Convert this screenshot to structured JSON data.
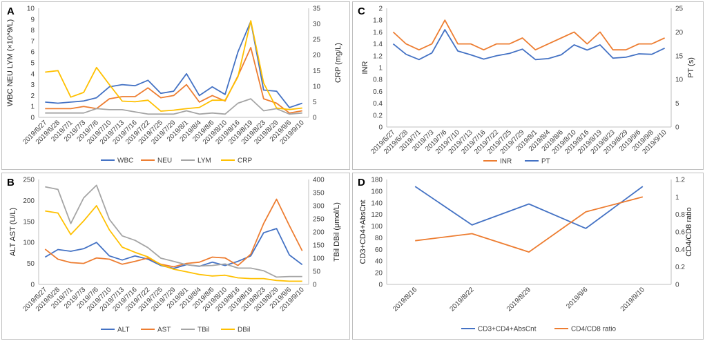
{
  "chart_data": [
    {
      "panel": "A",
      "type": "line",
      "categories": [
        "2019/6/27",
        "2019/6/28",
        "2019/7/1",
        "2019/7/3",
        "2019/7/6",
        "2019/7/10",
        "2019/7/13",
        "2019/7/16",
        "2019/7/22",
        "2019/7/25",
        "2019/7/29",
        "2019/8/1",
        "2019/8/4",
        "2019/8/6",
        "2019/8/10",
        "2019/8/16",
        "2019/8/19",
        "2019/8/23",
        "2019/8/29",
        "2019/9/6",
        "2019/9/10"
      ],
      "ylabel": "WBC NEU LYM (×10^9/L)",
      "y2label": "CRP (mg/L)",
      "ylim": [
        0,
        10
      ],
      "yticks": [
        "0",
        "1",
        "2",
        "3",
        "4",
        "5",
        "6",
        "7",
        "8",
        "9",
        "10"
      ],
      "y2lim": [
        0,
        35
      ],
      "y2ticks": [
        "0",
        "5",
        "10",
        "15",
        "20",
        "25",
        "30",
        "35"
      ],
      "series": [
        {
          "name": "WBC",
          "color": "#4472c4",
          "axis": "left",
          "values": [
            1.4,
            1.3,
            1.4,
            1.5,
            1.8,
            2.8,
            3.0,
            2.9,
            3.4,
            2.2,
            2.4,
            4.0,
            2.0,
            2.8,
            2.1,
            6.0,
            8.8,
            2.5,
            2.4,
            0.9,
            1.3
          ]
        },
        {
          "name": "NEU",
          "color": "#ed7d31",
          "axis": "left",
          "values": [
            0.8,
            0.8,
            0.8,
            1.0,
            0.8,
            1.7,
            1.9,
            1.9,
            2.7,
            1.8,
            2.0,
            3.0,
            1.4,
            2.0,
            1.5,
            3.8,
            6.4,
            1.7,
            1.3,
            0.4,
            0.6
          ]
        },
        {
          "name": "LYM",
          "color": "#a5a5a5",
          "axis": "left",
          "values": [
            0.4,
            0.4,
            0.4,
            0.4,
            0.8,
            0.7,
            0.7,
            0.5,
            0.3,
            0.3,
            0.3,
            0.6,
            0.3,
            0.4,
            0.3,
            1.3,
            1.7,
            0.6,
            0.8,
            0.3,
            0.4
          ]
        },
        {
          "name": "CRP",
          "color": "#ffc000",
          "axis": "right",
          "values": [
            14.5,
            15.0,
            6.5,
            8.0,
            16.0,
            10.5,
            5.2,
            5.0,
            5.5,
            2.0,
            2.3,
            2.8,
            3.2,
            5.5,
            5.5,
            13.0,
            31.0,
            11.0,
            3.0,
            2.5,
            3.0
          ]
        }
      ]
    },
    {
      "panel": "B",
      "type": "line",
      "categories": [
        "2019/6/27",
        "2019/6/28",
        "2019/7/1",
        "2019/7/3",
        "2019/7/6",
        "2019/7/10",
        "2019/7/13",
        "2019/7/16",
        "2019/7/22",
        "2019/7/25",
        "2019/7/29",
        "2019/8/1",
        "2019/8/4",
        "2019/8/6",
        "2019/8/10",
        "2019/8/16",
        "2019/8/19",
        "2019/8/23",
        "2019/8/29",
        "2019/9/6",
        "2019/9/10"
      ],
      "ylabel": "ALT AST (U/L)",
      "y2label": "TBil DBil (μmol/L)",
      "ylim": [
        0,
        250
      ],
      "yticks": [
        "0",
        "50",
        "100",
        "150",
        "200",
        "250"
      ],
      "y2lim": [
        0,
        400
      ],
      "y2ticks": [
        "0",
        "50",
        "100",
        "150",
        "200",
        "250",
        "300",
        "350",
        "400"
      ],
      "series": [
        {
          "name": "ALT",
          "color": "#4472c4",
          "axis": "left",
          "values": [
            65,
            83,
            79,
            85,
            100,
            68,
            58,
            68,
            60,
            45,
            38,
            47,
            43,
            53,
            45,
            55,
            68,
            123,
            133,
            70,
            47
          ]
        },
        {
          "name": "AST",
          "color": "#ed7d31",
          "axis": "left",
          "values": [
            84,
            60,
            52,
            50,
            63,
            60,
            48,
            55,
            63,
            48,
            42,
            50,
            53,
            65,
            63,
            45,
            72,
            145,
            203,
            140,
            80
          ]
        },
        {
          "name": "TBil",
          "color": "#a5a5a5",
          "axis": "right",
          "values": [
            372,
            362,
            232,
            330,
            378,
            248,
            185,
            168,
            140,
            100,
            88,
            75,
            70,
            72,
            78,
            62,
            62,
            52,
            28,
            30,
            30
          ]
        },
        {
          "name": "DBil",
          "color": "#ffc000",
          "axis": "right",
          "values": [
            280,
            272,
            190,
            242,
            300,
            208,
            142,
            122,
            105,
            75,
            58,
            48,
            38,
            32,
            35,
            25,
            22,
            22,
            15,
            12,
            12
          ]
        }
      ]
    },
    {
      "panel": "C",
      "type": "line",
      "categories": [
        "2019/6/27",
        "2019/6/28",
        "2019/7/1",
        "2019/7/3",
        "2019/7/6",
        "2019/7/10",
        "2019/7/13",
        "2019/7/16",
        "2019/7/22",
        "2019/7/25",
        "2019/7/29",
        "2019/8/1",
        "2019/8/4",
        "2019/8/6",
        "2019/8/10",
        "2019/8/16",
        "2019/8/19",
        "2019/8/23",
        "2019/8/29",
        "2019/9/6",
        "2019/9/8",
        "2019/9/10"
      ],
      "ylabel": "INR",
      "y2label": "PT (s)",
      "ylim": [
        0,
        2
      ],
      "yticks": [
        "0",
        "0.2",
        "0.4",
        "0.6",
        "0.8",
        "1",
        "1.2",
        "1.4",
        "1.6",
        "1.8",
        "2"
      ],
      "y2lim": [
        0,
        25
      ],
      "y2ticks": [
        "0",
        "5",
        "10",
        "15",
        "20",
        "25"
      ],
      "series": [
        {
          "name": "INR",
          "color": "#ed7d31",
          "axis": "left",
          "values": [
            1.6,
            1.4,
            1.3,
            1.4,
            1.8,
            1.4,
            1.4,
            1.3,
            1.4,
            1.4,
            1.5,
            1.3,
            1.4,
            1.5,
            1.6,
            1.4,
            1.6,
            1.3,
            1.3,
            1.4,
            1.4,
            1.5
          ]
        },
        {
          "name": "PT",
          "color": "#4472c4",
          "axis": "right",
          "values": [
            17.5,
            15.3,
            14.2,
            15.6,
            20.5,
            16.0,
            15.2,
            14.3,
            15.0,
            15.5,
            16.4,
            14.2,
            14.4,
            15.2,
            17.3,
            16.2,
            17.3,
            14.5,
            14.7,
            15.4,
            15.3,
            16.6
          ]
        }
      ]
    },
    {
      "panel": "D",
      "type": "line",
      "categories": [
        "2019/8/16",
        "2019/8/22",
        "2019/8/29",
        "2019/9/6",
        "2019/9/10"
      ],
      "ylabel": "CD3+CD4+AbsCnt",
      "y2label": "CD4/CD8 ratio",
      "ylim": [
        0,
        180
      ],
      "yticks": [
        "0",
        "20",
        "40",
        "60",
        "80",
        "100",
        "120",
        "140",
        "160",
        "180"
      ],
      "y2lim": [
        0,
        1.2
      ],
      "y2ticks": [
        "0",
        "0.2",
        "0.4",
        "0.6",
        "0.8",
        "1",
        "1.2"
      ],
      "series": [
        {
          "name": "CD3+CD4+AbsCnt",
          "color": "#4472c4",
          "axis": "left",
          "values": [
            168,
            102,
            138,
            96,
            168
          ]
        },
        {
          "name": "CD4/CD8 ratio",
          "color": "#ed7d31",
          "axis": "right",
          "values": [
            0.5,
            0.58,
            0.37,
            0.83,
            1.0
          ]
        }
      ]
    }
  ]
}
